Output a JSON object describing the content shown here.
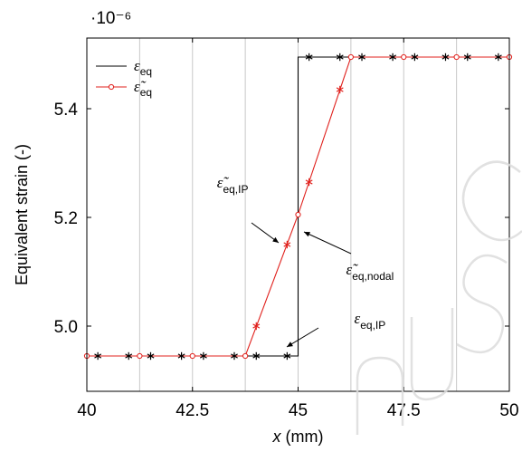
{
  "chart_data": {
    "type": "line",
    "xlabel": "x (mm)",
    "xlabel_var": "x",
    "xlabel_unit": " (mm)",
    "ylabel": "Equivalent strain (-)",
    "y_multiplier": "·10⁻⁶",
    "xlim": [
      40,
      50
    ],
    "ylim": [
      4.88,
      5.53
    ],
    "x_ticks": [
      40,
      42.5,
      45,
      47.5,
      50
    ],
    "x_tick_labels": [
      "40",
      "42.5",
      "45",
      "47.5",
      "50"
    ],
    "y_ticks": [
      5.0,
      5.2,
      5.4
    ],
    "y_tick_labels": [
      "5.0",
      "5.2",
      "5.4"
    ],
    "element_boundaries": [
      41.25,
      42.5,
      43.75,
      45,
      46.25,
      47.5,
      48.75
    ],
    "grid": "vertical",
    "legend_position": "top-left",
    "series": [
      {
        "name": "εeq",
        "color": "#000000",
        "style": "step",
        "x": [
          40,
          45,
          45,
          50
        ],
        "y": [
          4.945,
          4.945,
          5.495,
          5.495
        ]
      },
      {
        "name": "ε̃eq",
        "color": "#e0201c",
        "marker": "circle",
        "x": [
          40,
          41.25,
          42.5,
          43.75,
          45,
          46.25,
          47.5,
          48.75,
          50
        ],
        "y": [
          4.945,
          4.945,
          4.945,
          4.945,
          5.205,
          5.495,
          5.495,
          5.495,
          5.495
        ]
      }
    ],
    "ip_points": {
      "black": {
        "x": [
          40.26,
          40.99,
          41.51,
          42.24,
          42.76,
          43.49,
          44.01,
          44.74,
          45.26,
          45.99,
          46.51,
          47.24,
          47.76,
          48.49,
          49.01,
          49.74
        ],
        "y": [
          4.945,
          4.945,
          4.945,
          4.945,
          4.945,
          4.945,
          4.945,
          4.945,
          5.495,
          5.495,
          5.495,
          5.495,
          5.495,
          5.495,
          5.495,
          5.495
        ]
      },
      "red": {
        "x": [
          44.01,
          44.74,
          45.26,
          45.99
        ],
        "y": [
          5.0,
          5.15,
          5.265,
          5.435
        ]
      }
    },
    "annotations": [
      {
        "main": "ε̃",
        "sub": "eq,IP",
        "x": 43.45,
        "y": 5.255
      },
      {
        "main": "ε̃",
        "sub": "eq,nodal",
        "x": 46.7,
        "y": 5.095
      },
      {
        "main": "ε",
        "sub": "eq,IP",
        "x": 46.7,
        "y": 5.005
      }
    ]
  }
}
